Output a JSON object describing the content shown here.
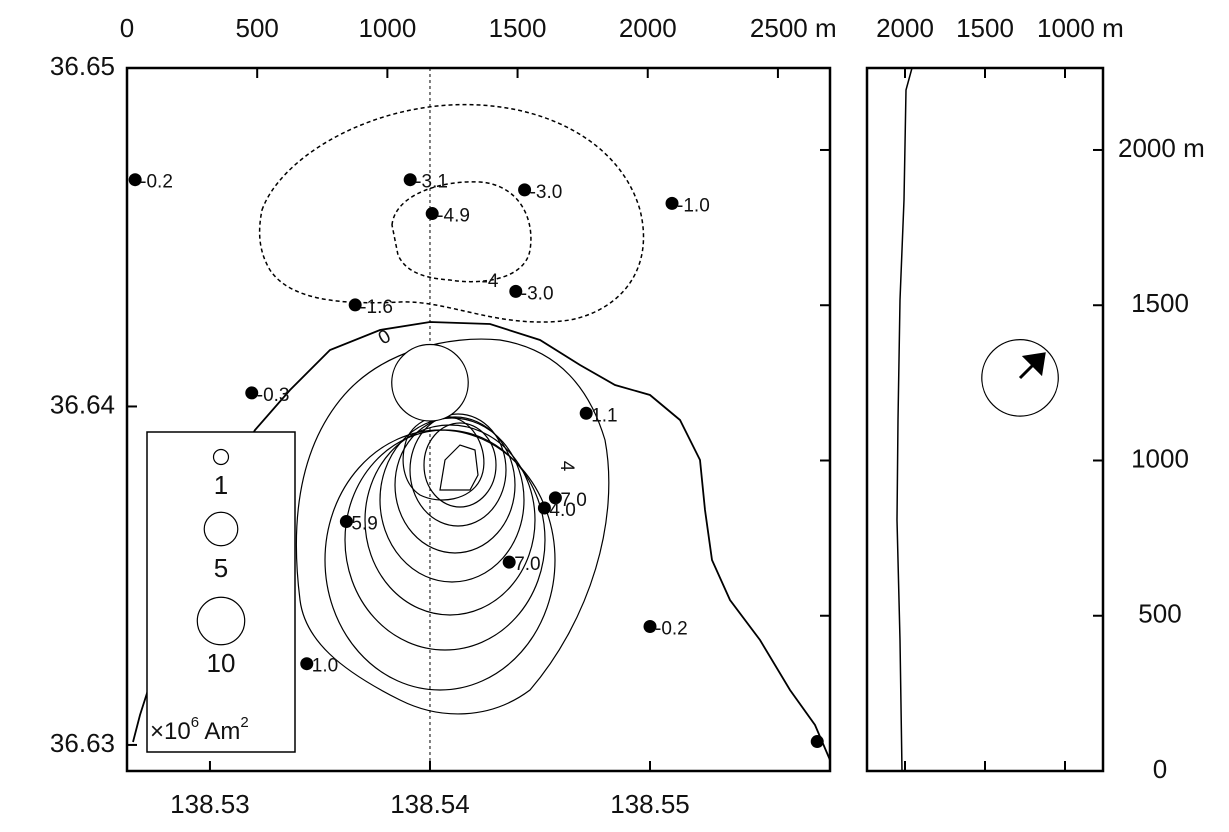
{
  "chart_data": [
    {
      "type": "scatter",
      "x": [
        138.5266,
        138.5391,
        138.5443,
        138.5401,
        138.551,
        138.5366,
        138.5439,
        138.5319,
        138.5471,
        138.5457,
        138.5452,
        138.5362,
        138.5436,
        138.55,
        138.5344,
        138.5576
      ],
      "y": [
        36.6467,
        36.6467,
        36.6464,
        36.6457,
        36.646,
        36.643,
        36.6434,
        36.6404,
        36.6398,
        36.6373,
        36.637,
        36.6366,
        36.6354,
        36.6335,
        36.6324,
        36.6301
      ],
      "values": [
        -0.2,
        -3.1,
        -3.0,
        -4.9,
        -1.0,
        -1.6,
        -3.0,
        -0.3,
        1.1,
        7.0,
        4.0,
        5.9,
        7.0,
        -0.2,
        1.0,
        null
      ],
      "value_labels": [
        "-0.2",
        "-3.1",
        "-3.0",
        "-4.9",
        "-1.0",
        "-1.6",
        "-3.0",
        "-0.3",
        "1.1",
        "7.0",
        "4.0",
        "5.9",
        "7.0",
        "-0.2",
        "1.0",
        null
      ],
      "color": "#000000",
      "xlim": [
        138.52623,
        138.55818
      ],
      "xticks": [
        138.53,
        138.54,
        138.55
      ],
      "ylim": [
        36.62923,
        36.65
      ],
      "yticks": [
        36.63,
        36.64,
        36.65
      ],
      "x2lim": [
        0,
        2700
      ],
      "x2ticks": [
        0,
        500,
        1000,
        1500,
        2000,
        {
          "value": 2500,
          "label": "2500 m"
        }
      ],
      "section_x": 138.54,
      "source": {
        "x": 138.54,
        "y": 36.6407,
        "size": 26
      },
      "contour_labels": [
        "0",
        "-4",
        "4"
      ],
      "legend": {
        "sizes": [
          1,
          5,
          10
        ],
        "labels": [
          "1",
          "5",
          "10"
        ],
        "unit": [
          "×10",
          "6",
          " Am",
          "2"
        ]
      }
    },
    {
      "type": "profile",
      "xlim": [
        2237.5,
        762.5
      ],
      "xticks": [
        2000,
        1500,
        {
          "value": 1000,
          "label": "1000 m"
        }
      ],
      "ylim": [
        0,
        2264
      ],
      "yticks": [
        0,
        500,
        1000,
        1500,
        {
          "value": 2000,
          "label": "2000 m"
        }
      ],
      "source": {
        "x": 1281,
        "y": 1266,
        "size": 26
      }
    }
  ]
}
